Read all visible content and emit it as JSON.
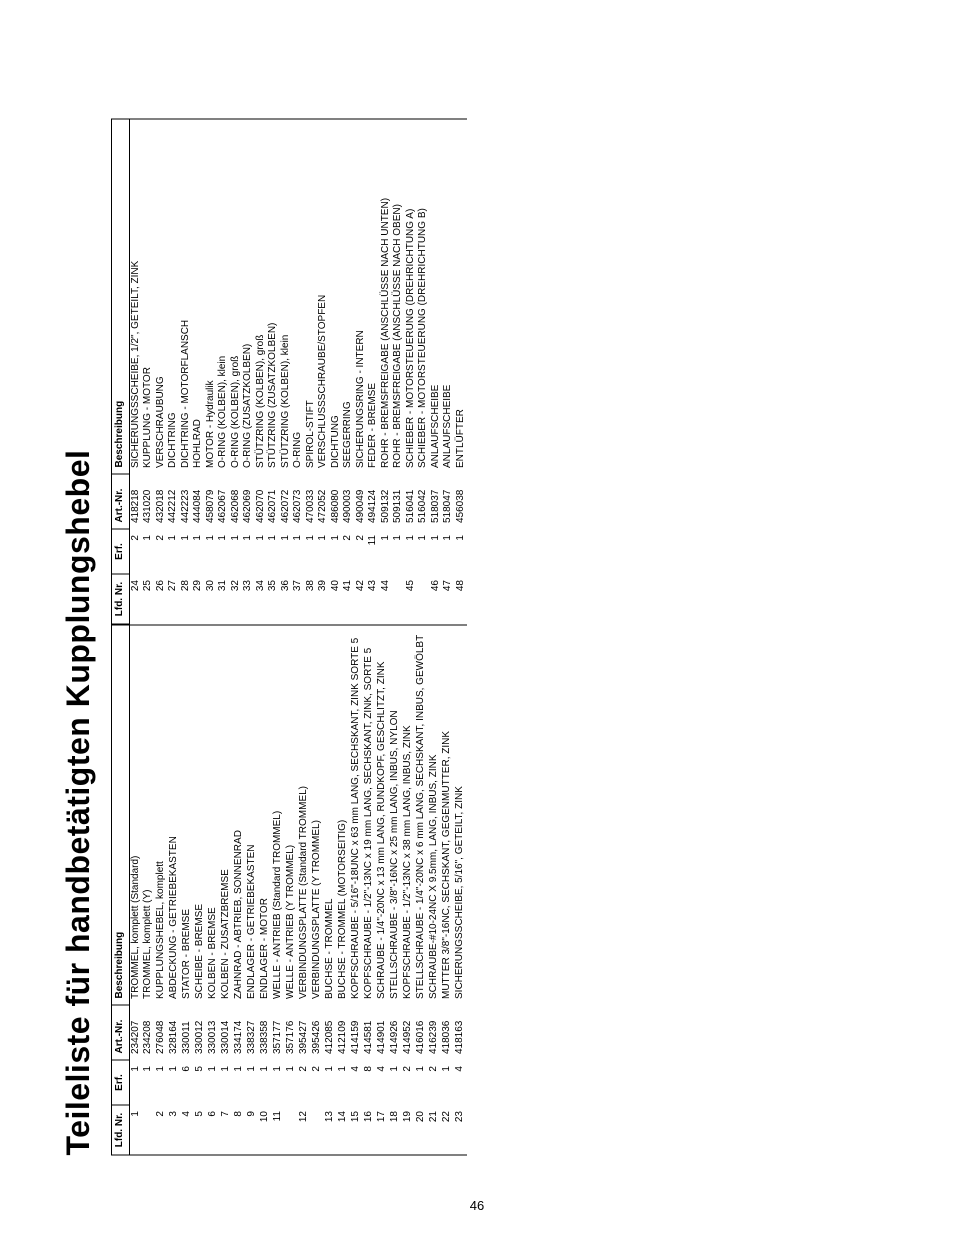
{
  "title": "Teileliste für handbetätigten Kupplungshebel",
  "page_number": "46",
  "headers": {
    "lfd": "Lfd. Nr.",
    "erf": "Erf.",
    "art": "Art.-Nr.",
    "desc": "Beschreibung"
  },
  "style": {
    "background_color": "#ffffff",
    "text_color": "#000000",
    "border_color": "#000000",
    "title_fontsize": 32,
    "body_fontsize": 10,
    "footer_fontsize": 13
  },
  "left_rows": [
    {
      "lfd": "1",
      "erf": "1",
      "art": "234207",
      "desc": "TROMMEL, komplett (Standard)"
    },
    {
      "lfd": "",
      "erf": "1",
      "art": "234208",
      "desc": "TROMMEL, komplett (Y)"
    },
    {
      "lfd": "2",
      "erf": "1",
      "art": "276048",
      "desc": "KUPPLUNGSHEBEL, komplett"
    },
    {
      "lfd": "3",
      "erf": "1",
      "art": "328164",
      "desc": "ABDECKUNG - GETRIEBEKASTEN"
    },
    {
      "lfd": "4",
      "erf": "6",
      "art": "330011",
      "desc": "STATOR - BREMSE"
    },
    {
      "lfd": "5",
      "erf": "5",
      "art": "330012",
      "desc": "SCHEIBE - BREMSE"
    },
    {
      "lfd": "6",
      "erf": "1",
      "art": "330013",
      "desc": "KOLBEN - BREMSE"
    },
    {
      "lfd": "7",
      "erf": "1",
      "art": "330014",
      "desc": "KOLBEN - ZUSATZBREMSE"
    },
    {
      "lfd": "8",
      "erf": "1",
      "art": "334174",
      "desc": "ZAHNRAD - ABTRIEB, SONNENRAD"
    },
    {
      "lfd": "9",
      "erf": "1",
      "art": "338327",
      "desc": "ENDLAGER - GETRIEBEKASTEN"
    },
    {
      "lfd": "10",
      "erf": "1",
      "art": "338358",
      "desc": "ENDLAGER - MOTOR"
    },
    {
      "lfd": "11",
      "erf": "1",
      "art": "357177",
      "desc": "WELLE - ANTRIEB (Standard TROMMEL)"
    },
    {
      "lfd": "",
      "erf": "1",
      "art": "357176",
      "desc": "WELLE - ANTRIEB (Y TROMMEL)"
    },
    {
      "lfd": "12",
      "erf": "2",
      "art": "395427",
      "desc": "VERBINDUNGSPLATTE (Standard TROMMEL)"
    },
    {
      "lfd": "",
      "erf": "2",
      "art": "395426",
      "desc": "VERBINDUNGSPLATTE (Y TROMMEL)"
    },
    {
      "lfd": "13",
      "erf": "1",
      "art": "412085",
      "desc": "BUCHSE - TROMMEL"
    },
    {
      "lfd": "14",
      "erf": "1",
      "art": "412109",
      "desc": "BUCHSE - TROMMEL (MOTORSEITIG)"
    },
    {
      "lfd": "15",
      "erf": "4",
      "art": "414159",
      "desc": "KOPFSCHRAUBE - 5/16\"-18UNC x 63 mm LANG, SECHSKANT, ZINK SORTE 5"
    },
    {
      "lfd": "16",
      "erf": "8",
      "art": "414581",
      "desc": "KOPFSCHRAUBE - 1/2\"-13NC x 19 mm LANG, SECHSKANT, ZINK, SORTE 5"
    },
    {
      "lfd": "17",
      "erf": "4",
      "art": "414901",
      "desc": "SCHRAUBE - 1/4\"-20NC x 13 mm LANG, RUNDKOPF, GESCHLITZT, ZINK"
    },
    {
      "lfd": "18",
      "erf": "1",
      "art": "414926",
      "desc": "STELLSCHRAUBE - 3/8\"-16NC x 25 mm LANG, INBUS, NYLON"
    },
    {
      "lfd": "19",
      "erf": "2",
      "art": "414952",
      "desc": "KOPFSCHRAUBE - 1/2\"-13NC x 38 mm LANG, INBUS, ZINK"
    },
    {
      "lfd": "20",
      "erf": "1",
      "art": "416016",
      "desc": "STELLSCHRAUBE - 1/4\"-20NC x 6 mm LANG, SECHSKANT, INBUS, GEWÖLBT"
    },
    {
      "lfd": "21",
      "erf": "2",
      "art": "416239",
      "desc": "SCHRAUBE-#10-24NC X 9.5mm, LANG, INBUS, ZINK"
    },
    {
      "lfd": "22",
      "erf": "1",
      "art": "418036",
      "desc": "MUTTER 3/8\"-16NC, SECHSKANT, GEGENMUTTER, ZINK"
    },
    {
      "lfd": "23",
      "erf": "4",
      "art": "418163",
      "desc": "SICHERUNGSSCHEIBE, 5/16\", GETEILT, ZINK"
    }
  ],
  "right_rows": [
    {
      "lfd": "24",
      "erf": "2",
      "art": "418218",
      "desc": "SICHERUNGSSCHEIBE, 1/2\", GETEILT, ZINK"
    },
    {
      "lfd": "25",
      "erf": "1",
      "art": "431020",
      "desc": "KUPPLUNG - MOTOR"
    },
    {
      "lfd": "26",
      "erf": "2",
      "art": "432018",
      "desc": "VERSCHRAUBUNG"
    },
    {
      "lfd": "27",
      "erf": "1",
      "art": "442212",
      "desc": "DICHTRING"
    },
    {
      "lfd": "28",
      "erf": "1",
      "art": "442223",
      "desc": "DICHTRING - MOTORFLANSCH"
    },
    {
      "lfd": "29",
      "erf": "1",
      "art": "444084",
      "desc": "HOHLRAD"
    },
    {
      "lfd": "30",
      "erf": "1",
      "art": "458079",
      "desc": "MOTOR - Hydraulik"
    },
    {
      "lfd": "31",
      "erf": "1",
      "art": "462067",
      "desc": "O-RING (KOLBEN), klein"
    },
    {
      "lfd": "32",
      "erf": "1",
      "art": "462068",
      "desc": "O-RING (KOLBEN), groß"
    },
    {
      "lfd": "33",
      "erf": "1",
      "art": "462069",
      "desc": "O-RING (ZUSATZKOLBEN)"
    },
    {
      "lfd": "34",
      "erf": "1",
      "art": "462070",
      "desc": "STÜTZRING (KOLBEN), groß"
    },
    {
      "lfd": "35",
      "erf": "1",
      "art": "462071",
      "desc": "STÜTZRING (ZUSATZKOLBEN)"
    },
    {
      "lfd": "36",
      "erf": "1",
      "art": "462072",
      "desc": "STÜTZRING (KOLBEN), klein"
    },
    {
      "lfd": "37",
      "erf": "1",
      "art": "462073",
      "desc": "O-RING"
    },
    {
      "lfd": "38",
      "erf": "1",
      "art": "470033",
      "desc": "SPIROL-STIFT"
    },
    {
      "lfd": "39",
      "erf": "1",
      "art": "472052",
      "desc": "VERSCHLUSSSCHRAUBE/STOPFEN"
    },
    {
      "lfd": "40",
      "erf": "1",
      "art": "486080",
      "desc": "DICHTUNG"
    },
    {
      "lfd": "41",
      "erf": "2",
      "art": "490003",
      "desc": "SEEGERRING"
    },
    {
      "lfd": "42",
      "erf": "2",
      "art": "490049",
      "desc": "SICHERUNGSRING - INTERN"
    },
    {
      "lfd": "43",
      "erf": "11",
      "art": "494124",
      "desc": "FEDER - BREMSE"
    },
    {
      "lfd": "44",
      "erf": "1",
      "art": "509132",
      "desc": "ROHR - BREMSFREIGABE (ANSCHLÜSSE NACH UNTEN)"
    },
    {
      "lfd": "",
      "erf": "1",
      "art": "509131",
      "desc": "ROHR - BREMSFREIGABE (ANSCHLÜSSE NACH OBEN)"
    },
    {
      "lfd": "45",
      "erf": "1",
      "art": "516041",
      "desc": "SCHIEBER - MOTORSTEUERUNG (DREHRICHTUNG A)"
    },
    {
      "lfd": "",
      "erf": "1",
      "art": "516042",
      "desc": "SCHIEBER - MOTORSTEUERUNG (DREHRICHTUNG B)"
    },
    {
      "lfd": "46",
      "erf": "1",
      "art": "518037",
      "desc": "ANLAUFSCHEIBE"
    },
    {
      "lfd": "47",
      "erf": "1",
      "art": "518047",
      "desc": "ANLAUFSCHEIBE"
    },
    {
      "lfd": "48",
      "erf": "1",
      "art": "456038",
      "desc": "ENTLÜFTER"
    }
  ]
}
